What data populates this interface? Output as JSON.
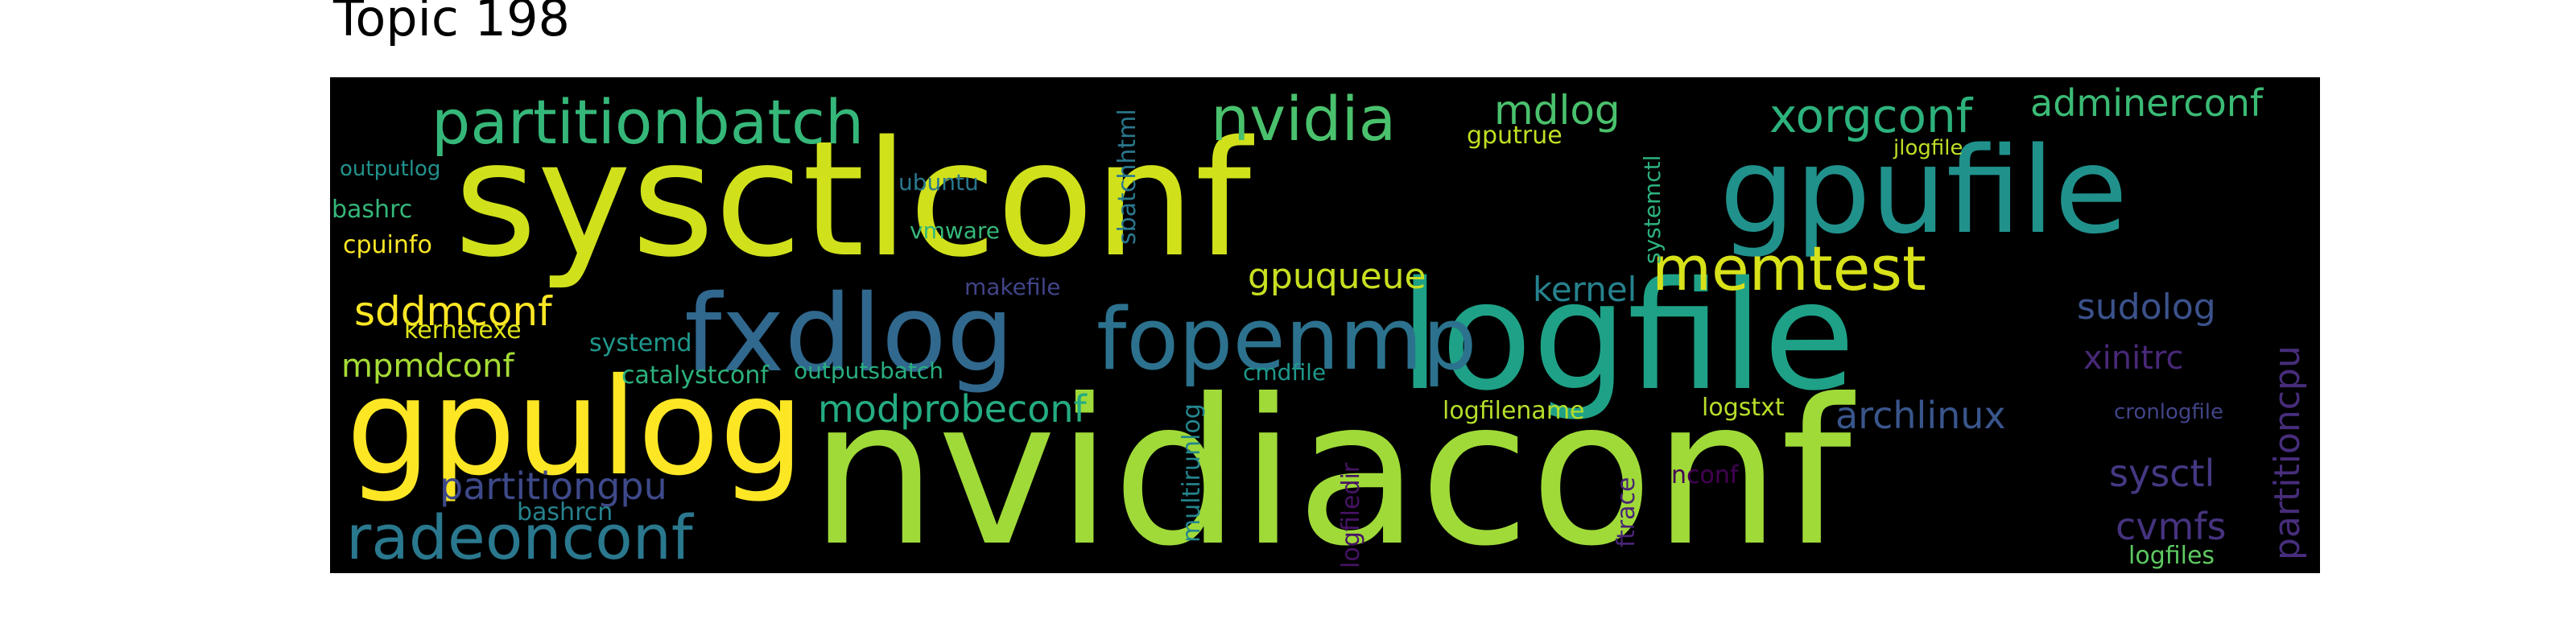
{
  "title": "Topic 198",
  "words": [
    {
      "text": "nvidiaconf",
      "color": "#a0da39"
    },
    {
      "text": "sysctlconf",
      "color": "#d0e11c"
    },
    {
      "text": "logfile",
      "color": "#1fa187"
    },
    {
      "text": "gpufile",
      "color": "#21918c"
    },
    {
      "text": "gpulog",
      "color": "#fde725"
    },
    {
      "text": "fxdlog",
      "color": "#31688e"
    },
    {
      "text": "fopenmp",
      "color": "#2c728e"
    },
    {
      "text": "partitionbatch",
      "color": "#35b779"
    },
    {
      "text": "nvidia",
      "color": "#4ac16d"
    },
    {
      "text": "memtest",
      "color": "#d8e219"
    },
    {
      "text": "xorgconf",
      "color": "#2db27d"
    },
    {
      "text": "adminerconf",
      "color": "#3bbb75"
    },
    {
      "text": "radeonconf",
      "color": "#2a788e"
    },
    {
      "text": "modprobeconf",
      "color": "#25ac82"
    },
    {
      "text": "mdlog",
      "color": "#4ac16d"
    },
    {
      "text": "partitiongpu",
      "color": "#3e4989"
    },
    {
      "text": "sddmconf",
      "color": "#fde725"
    },
    {
      "text": "sudolog",
      "color": "#3b528b"
    },
    {
      "text": "gpuqueue",
      "color": "#c8e020"
    },
    {
      "text": "archlinux",
      "color": "#39568c"
    },
    {
      "text": "kernel",
      "color": "#26828e"
    },
    {
      "text": "xinitrc",
      "color": "#482878"
    },
    {
      "text": "sysctl",
      "color": "#443983"
    },
    {
      "text": "cvmfs",
      "color": "#46337f"
    },
    {
      "text": "partitioncpu",
      "color": "#472d7b"
    },
    {
      "text": "mpmdconf",
      "color": "#a5db36"
    },
    {
      "text": "sbatchhtml",
      "color": "#2a788e"
    },
    {
      "text": "systemctl",
      "color": "#2db27d"
    },
    {
      "text": "multirunlog",
      "color": "#24868e"
    },
    {
      "text": "logfiledir",
      "color": "#471365"
    },
    {
      "text": "ftrace",
      "color": "#482475"
    },
    {
      "text": "logfilename",
      "color": "#b5de2b"
    },
    {
      "text": "logstxt",
      "color": "#b8de29"
    },
    {
      "text": "catalystconf",
      "color": "#2db27d"
    },
    {
      "text": "outputsbatch",
      "color": "#28ae80"
    },
    {
      "text": "systemd",
      "color": "#1f988b"
    },
    {
      "text": "kernelexe",
      "color": "#dde318"
    },
    {
      "text": "cpuinfo",
      "color": "#fde725"
    },
    {
      "text": "bashrc",
      "color": "#35b779"
    },
    {
      "text": "outputlog",
      "color": "#21918c"
    },
    {
      "text": "ubuntu",
      "color": "#2a788e"
    },
    {
      "text": "vmware",
      "color": "#35b779"
    },
    {
      "text": "makefile",
      "color": "#414487"
    },
    {
      "text": "gputrue",
      "color": "#c2df23"
    },
    {
      "text": "jlogfile",
      "color": "#bddf26"
    },
    {
      "text": "cmdfile",
      "color": "#1f988b"
    },
    {
      "text": "bashrcn",
      "color": "#26828e"
    },
    {
      "text": "nconf",
      "color": "#440154"
    },
    {
      "text": "logfiles",
      "color": "#5ec962"
    },
    {
      "text": "cronlogfile",
      "color": "#414487"
    }
  ]
}
